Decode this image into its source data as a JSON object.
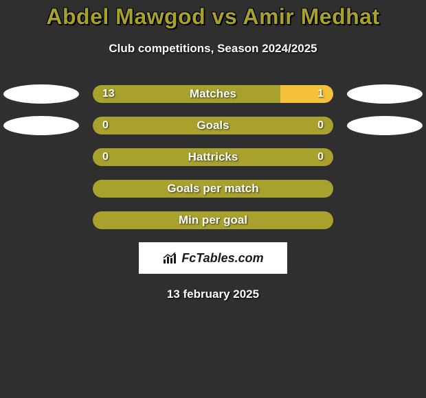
{
  "title": "Abdel Mawgod vs Amir Medhat",
  "subtitle": "Club competitions, Season 2024/2025",
  "colors": {
    "background": "#2f2f2f",
    "title_color": "#a8a12e",
    "text_color": "#ffffff",
    "bar_primary": "#a8a12e",
    "bar_accent": "#f5c13b",
    "ellipse": "#ffffff"
  },
  "rows": [
    {
      "label": "Matches",
      "left_val": "13",
      "right_val": "1",
      "left_pct": 78,
      "right_pct": 22,
      "left_color": "#a8a12e",
      "right_color": "#f5c13b",
      "show_ellipses": true
    },
    {
      "label": "Goals",
      "left_val": "0",
      "right_val": "0",
      "left_pct": 50,
      "right_pct": 50,
      "left_color": "#a8a12e",
      "right_color": "#a8a12e",
      "show_ellipses": true
    },
    {
      "label": "Hattricks",
      "left_val": "0",
      "right_val": "0",
      "left_pct": 50,
      "right_pct": 50,
      "left_color": "#a8a12e",
      "right_color": "#a8a12e",
      "show_ellipses": false
    },
    {
      "label": "Goals per match",
      "left_val": "",
      "right_val": "",
      "left_pct": 50,
      "right_pct": 50,
      "left_color": "#a8a12e",
      "right_color": "#a8a12e",
      "show_ellipses": false
    },
    {
      "label": "Min per goal",
      "left_val": "",
      "right_val": "",
      "left_pct": 50,
      "right_pct": 50,
      "left_color": "#a8a12e",
      "right_color": "#a8a12e",
      "show_ellipses": false
    }
  ],
  "logo_text": "FcTables.com",
  "date": "13 february 2025"
}
